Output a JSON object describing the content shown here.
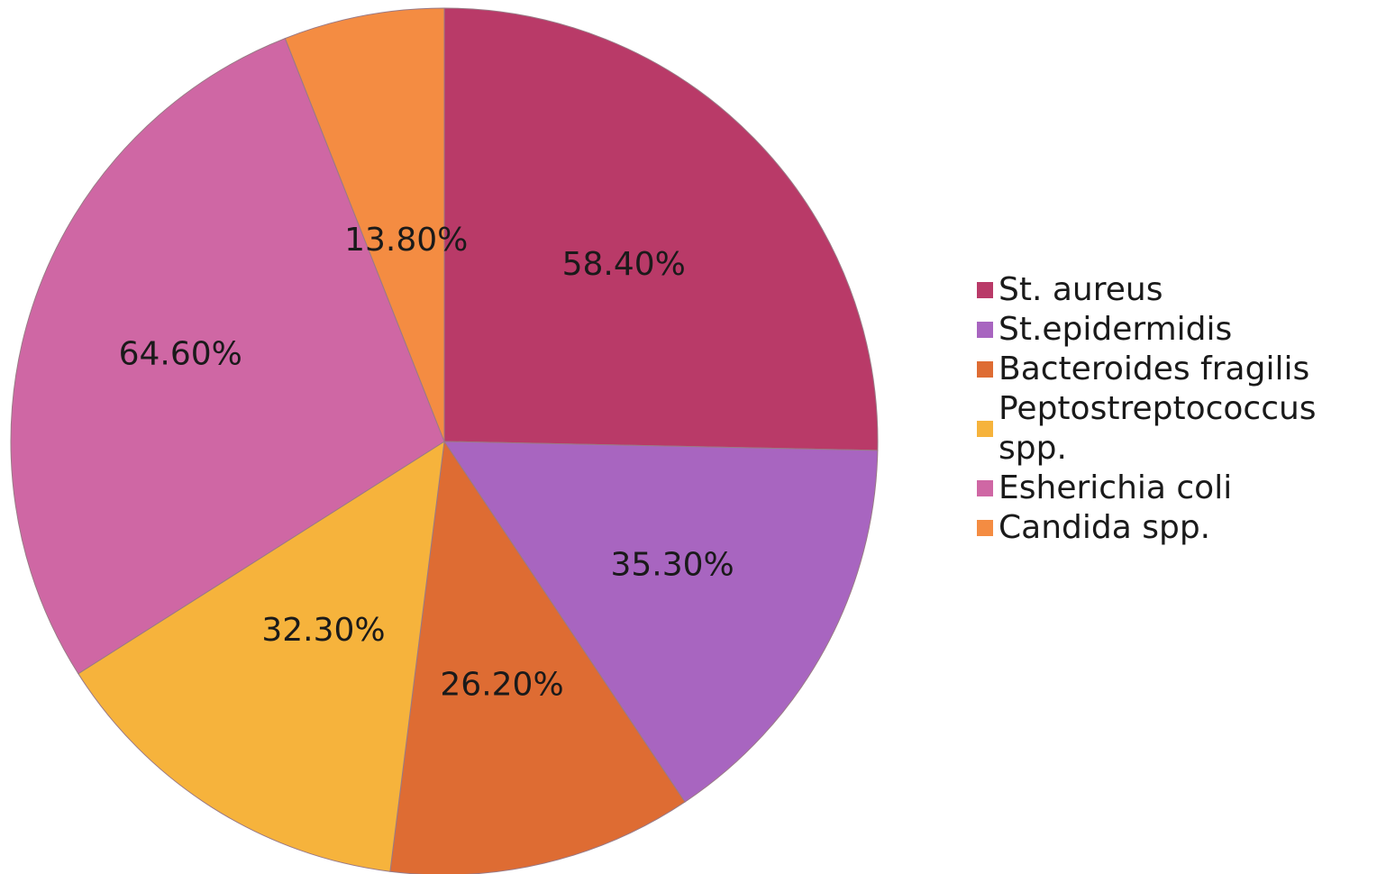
{
  "chart_data": {
    "type": "pie",
    "categories": [
      "St. aureus",
      "St.epidermidis",
      "Bacteroides fragilis",
      "Peptostreptococcus spp.",
      "Esherichia coli",
      "Candida spp."
    ],
    "values": [
      58.4,
      35.3,
      26.2,
      32.3,
      64.6,
      13.8
    ],
    "data_labels": [
      "58.40%",
      "35.30%",
      "26.20%",
      "32.30%",
      "64.60%",
      "13.80%"
    ],
    "colors": [
      "#b93a68",
      "#a865c0",
      "#de6c33",
      "#f6b33c",
      "#cf67a4",
      "#f48c42"
    ],
    "start_angle": "12 o'clock, clockwise",
    "legend_position": "right",
    "title": ""
  }
}
